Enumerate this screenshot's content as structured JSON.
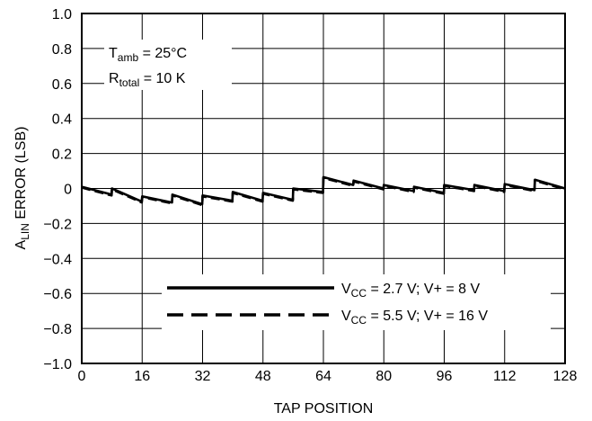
{
  "chart_data": {
    "type": "line",
    "xlabel": "TAP POSITION",
    "ylabel": {
      "main": "A",
      "sub": "LIN",
      "rest": " ERROR (LSB)"
    },
    "xlim": [
      0,
      128
    ],
    "ylim": [
      -1.0,
      1.0
    ],
    "xticks": [
      0,
      16,
      32,
      48,
      64,
      80,
      96,
      112,
      128
    ],
    "xtick_labels": [
      "0",
      "16",
      "32",
      "48",
      "64",
      "80",
      "96",
      "112",
      "128"
    ],
    "yticks": [
      -1.0,
      -0.8,
      -0.6,
      -0.4,
      -0.2,
      0,
      0.2,
      0.4,
      0.6,
      0.8,
      1.0
    ],
    "ytick_labels": [
      "−1.0",
      "−0.8",
      "−0.6",
      "−0.4",
      "−0.2",
      "0",
      "0.2",
      "0.4",
      "0.6",
      "0.8",
      "1.0"
    ],
    "grid": true,
    "annotations": [
      {
        "main": "T",
        "sub": "amb",
        "rest": " = 25°C"
      },
      {
        "main": "R",
        "sub": "total",
        "rest": " = 10 K"
      }
    ],
    "legend_position": "bottom-right",
    "series": [
      {
        "name": {
          "main": "V",
          "sub": "CC",
          "rest": " = 2.7 V; V+ = 8 V"
        },
        "style": "solid",
        "x": [
          0,
          7.9,
          8,
          15.9,
          16,
          23.9,
          24,
          31.9,
          32,
          39.9,
          40,
          47.9,
          48,
          55.9,
          56,
          63.9,
          64,
          71.9,
          72,
          79.9,
          80,
          87.9,
          88,
          95.9,
          96,
          103.9,
          104,
          111.9,
          112,
          119.9,
          120,
          128
        ],
        "values": [
          0.01,
          -0.035,
          0.0,
          -0.075,
          -0.045,
          -0.08,
          -0.035,
          -0.09,
          -0.04,
          -0.07,
          -0.02,
          -0.07,
          -0.025,
          -0.065,
          0.0,
          -0.02,
          0.065,
          0.02,
          0.045,
          0.0,
          0.02,
          -0.015,
          0.01,
          -0.025,
          0.02,
          -0.01,
          0.02,
          -0.015,
          0.025,
          -0.01,
          0.05,
          0.0
        ]
      },
      {
        "name": {
          "main": "V",
          "sub": "CC",
          "rest": " = 5.5 V; V+ = 16 V"
        },
        "style": "dashed",
        "x": [
          0,
          7.9,
          8,
          15.9,
          16,
          23.9,
          24,
          31.9,
          32,
          39.9,
          40,
          47.9,
          48,
          55.9,
          56,
          63.9,
          64,
          71.9,
          72,
          79.9,
          80,
          87.9,
          88,
          95.9,
          96,
          103.9,
          104,
          111.9,
          112,
          119.9,
          120,
          128
        ],
        "values": [
          0.005,
          -0.04,
          -0.005,
          -0.08,
          -0.05,
          -0.085,
          -0.04,
          -0.095,
          -0.045,
          -0.075,
          -0.025,
          -0.075,
          -0.03,
          -0.07,
          -0.005,
          -0.025,
          0.06,
          0.015,
          0.04,
          -0.005,
          0.015,
          -0.02,
          0.005,
          -0.03,
          0.015,
          -0.015,
          0.015,
          -0.02,
          0.02,
          -0.015,
          0.045,
          -0.005
        ]
      }
    ]
  }
}
